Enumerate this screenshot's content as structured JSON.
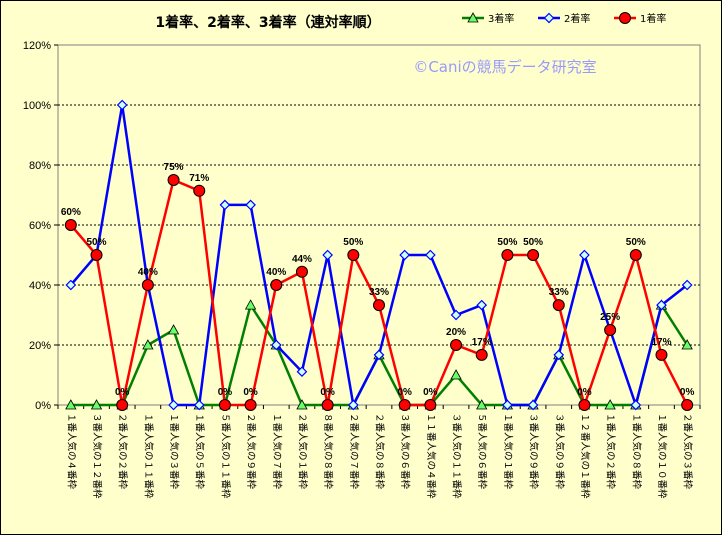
{
  "chart_data": {
    "type": "line",
    "title": "1着率、2着率、3着率（連対率順）",
    "watermark": "©Caniの競馬データ研究室",
    "ylim": [
      0,
      120
    ],
    "yticks": [
      "0%",
      "20%",
      "40%",
      "60%",
      "80%",
      "100%",
      "120%"
    ],
    "grid": true,
    "legend_position": "top-right",
    "categories": [
      "１番人気の４番枠",
      "３番人気の１２番枠",
      "２番人気の２番枠",
      "１番人気の１１番枠",
      "１番人気の３番枠",
      "１番人気の５番枠",
      "５番人気の１１番枠",
      "２番人気の９番枠",
      "１番人気の７番枠",
      "２番人気の１番枠",
      "８番人気の８番枠",
      "２番人気の７番枠",
      "２番人気の８番枠",
      "３番人気の６番枠",
      "１１番人気の４番枠",
      "３番人気の１１番枠",
      "５番人気の６番枠",
      "１番人気の１番枠",
      "３番人気の９番枠",
      "３番人気の９番枠",
      "１２番人気の１番枠",
      "１番人気の２番枠",
      "１番人気の８番枠",
      "１番人気の１０番枠",
      "２番人気の３番枠"
    ],
    "series": [
      {
        "name": "3着率",
        "color": "#008000",
        "marker": "triangle",
        "values": [
          0,
          0,
          0,
          20,
          25,
          0,
          0,
          33.3,
          20,
          0,
          0,
          0,
          16.7,
          0,
          0,
          10,
          0,
          0,
          0,
          16.7,
          0,
          0,
          0,
          33.3,
          20
        ]
      },
      {
        "name": "2着率",
        "color": "#0000ff",
        "marker": "diamond",
        "values": [
          40,
          50,
          100,
          40,
          0,
          0,
          66.7,
          66.7,
          20,
          11.1,
          50,
          0,
          16.7,
          50,
          50,
          30,
          33.3,
          0,
          0,
          16.7,
          50,
          25,
          0,
          33.3,
          40
        ]
      },
      {
        "name": "1着率",
        "color": "#ff0000",
        "marker": "circle",
        "values": [
          60,
          50,
          0,
          40,
          75,
          71.4,
          0,
          0,
          40,
          44.4,
          0,
          50,
          33.3,
          0,
          0,
          20,
          16.7,
          50,
          50,
          33.3,
          0,
          25,
          50,
          16.7,
          0
        ]
      }
    ],
    "data_labels": [
      "60%",
      "50%",
      "0%",
      "40%",
      "75%",
      "71%",
      "0%",
      "0%",
      "40%",
      "44%",
      "0%",
      "50%",
      "33%",
      "0%",
      "0%",
      "20%",
      "17%",
      "50%",
      "50%",
      "33%",
      "0%",
      "25%",
      "50%",
      "17%",
      "0%"
    ]
  }
}
